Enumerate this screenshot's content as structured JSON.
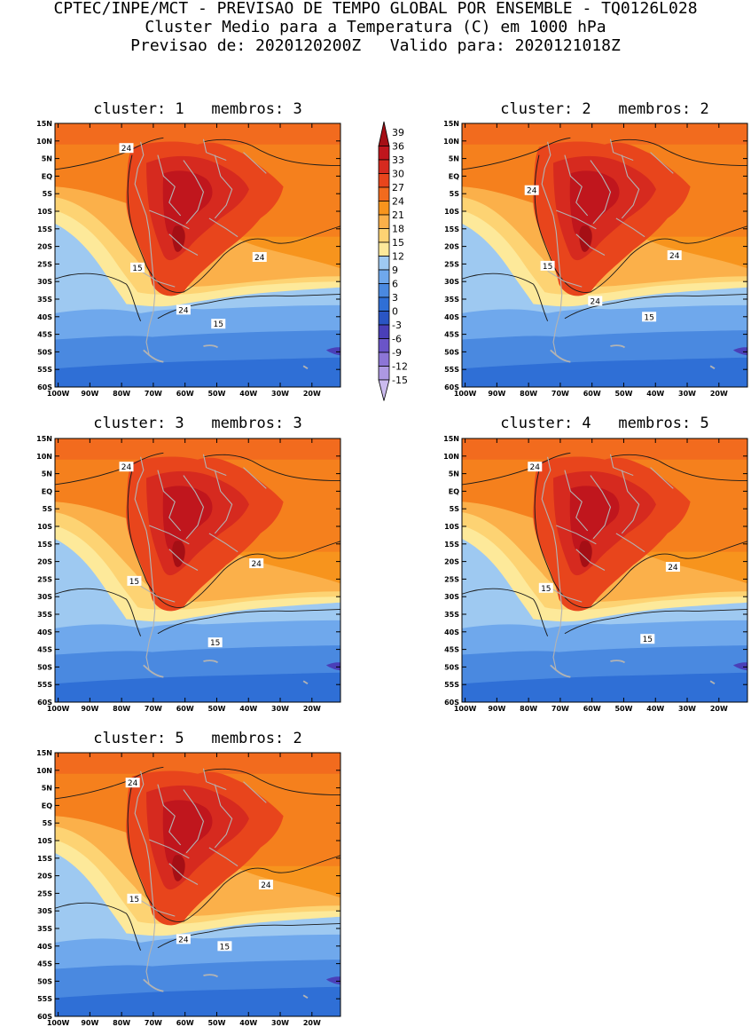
{
  "header": {
    "line1": "CPTEC/INPE/MCT - PREVISAO DE TEMPO GLOBAL POR ENSEMBLE - TQ0126L028",
    "line2": "Cluster Medio para a Temperatura (C) em 1000 hPa",
    "line3": "Previsao de: 2020120200Z   Valido para: 2020121018Z"
  },
  "axes": {
    "lat_ticks": [
      "15N",
      "10N",
      "5N",
      "EQ",
      "5S",
      "10S",
      "15S",
      "20S",
      "25S",
      "30S",
      "35S",
      "40S",
      "45S",
      "50S",
      "55S",
      "60S"
    ],
    "lon_ticks": [
      "100W",
      "90W",
      "80W",
      "70W",
      "60W",
      "50W",
      "40W",
      "30W",
      "20W"
    ]
  },
  "colorbar": {
    "labels": [
      "39",
      "36",
      "33",
      "30",
      "27",
      "24",
      "21",
      "18",
      "15",
      "12",
      "9",
      "6",
      "3",
      "0",
      "-3",
      "-6",
      "-9",
      "-12",
      "-15"
    ],
    "colors": [
      "#a50f15",
      "#c0161d",
      "#d62a1f",
      "#e8451c",
      "#f26b1e",
      "#f7941d",
      "#fbb04a",
      "#fdd373",
      "#fde99a",
      "#9ec9f1",
      "#6fa8ec",
      "#4a89e0",
      "#2f6fd6",
      "#2a55c4",
      "#4a3fb8",
      "#6a55c8",
      "#8c75d6",
      "#ad98e2",
      "#cbbbee"
    ]
  },
  "panels": [
    {
      "title": "cluster: 1   membros: 3",
      "labels": [
        {
          "t": "24",
          "x": -78.5,
          "y": 8
        },
        {
          "t": "24",
          "x": -36.5,
          "y": -23
        },
        {
          "t": "24",
          "x": -60.5,
          "y": -38
        },
        {
          "t": "15",
          "x": -75,
          "y": -26
        },
        {
          "t": "15",
          "x": -49.5,
          "y": -42
        }
      ]
    },
    {
      "title": "cluster: 2   membros: 2",
      "labels": [
        {
          "t": "24",
          "x": -79,
          "y": -4
        },
        {
          "t": "24",
          "x": -34,
          "y": -22.5
        },
        {
          "t": "24",
          "x": -59,
          "y": -35.5
        },
        {
          "t": "15",
          "x": -74,
          "y": -25.5
        },
        {
          "t": "15",
          "x": -42,
          "y": -40
        }
      ]
    },
    {
      "title": "cluster: 3   membros: 3",
      "labels": [
        {
          "t": "24",
          "x": -78.5,
          "y": 7
        },
        {
          "t": "24",
          "x": -37.5,
          "y": -20.5
        },
        {
          "t": "15",
          "x": -76,
          "y": -25.5
        },
        {
          "t": "15",
          "x": -50.5,
          "y": -43
        }
      ]
    },
    {
      "title": "cluster: 4   membros: 5",
      "labels": [
        {
          "t": "24",
          "x": -78,
          "y": 7
        },
        {
          "t": "24",
          "x": -34.5,
          "y": -21.5
        },
        {
          "t": "15",
          "x": -74.5,
          "y": -27.5
        },
        {
          "t": "15",
          "x": -42.5,
          "y": -42
        }
      ]
    },
    {
      "title": "cluster: 5   membros: 2",
      "labels": [
        {
          "t": "24",
          "x": -76.5,
          "y": 6.5
        },
        {
          "t": "24",
          "x": -34.5,
          "y": -22.5
        },
        {
          "t": "24",
          "x": -60.5,
          "y": -38
        },
        {
          "t": "15",
          "x": -76,
          "y": -26.5
        },
        {
          "t": "15",
          "x": -47.5,
          "y": -40
        }
      ]
    }
  ]
}
